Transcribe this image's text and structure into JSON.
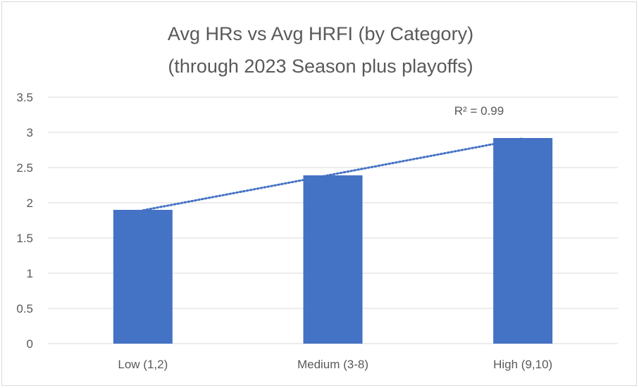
{
  "chart_data": {
    "type": "bar",
    "title_lines": [
      "Avg HRs vs Avg HRFI (by Category)",
      "(through 2023 Season plus playoffs)"
    ],
    "categories": [
      "Low (1,2)",
      "Medium (3-8)",
      "High (9,10)"
    ],
    "values": [
      1.9,
      2.39,
      2.92
    ],
    "ylim": [
      0,
      3.5
    ],
    "yticks": [
      "0",
      "0.5",
      "1",
      "1.5",
      "2",
      "2.5",
      "3",
      "3.5"
    ],
    "ytick_values": [
      0,
      0.5,
      1,
      1.5,
      2,
      2.5,
      3,
      3.5
    ],
    "grid": true,
    "bar_color": "#4472c4",
    "trendline": {
      "type": "linear",
      "style": "dotted",
      "color": "#4472c4",
      "label": "R² = 0.99"
    }
  }
}
